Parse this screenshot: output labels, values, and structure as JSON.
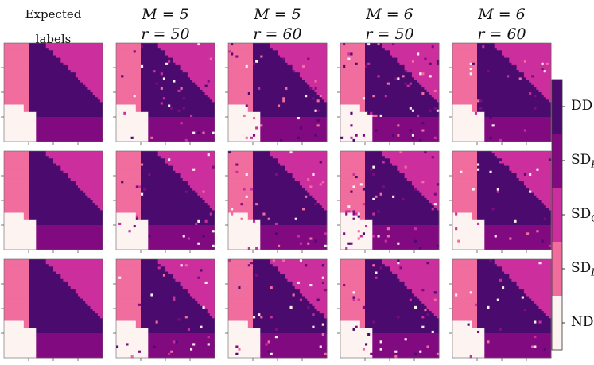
{
  "chart_data": {
    "type": "heatmap",
    "title": "",
    "columns": [
      {
        "line1": "Expected",
        "line2": "labels"
      },
      {
        "line1": "M = 5",
        "line2": "r = 50"
      },
      {
        "line1": "M = 5",
        "line2": "r = 60"
      },
      {
        "line1": "M = 6",
        "line2": "r = 50"
      },
      {
        "line1": "M = 6",
        "line2": "r = 60"
      }
    ],
    "rows": 3,
    "grid_size": 40,
    "colorbar": {
      "labels": [
        {
          "text": "DD",
          "sub": ""
        },
        {
          "text": "SD",
          "sub": "R"
        },
        {
          "text": "SD",
          "sub": "C"
        },
        {
          "text": "SD",
          "sub": "L"
        },
        {
          "text": "ND",
          "sub": ""
        }
      ],
      "colors": [
        "#4b0a6e",
        "#820a80",
        "#cc2e9d",
        "#f06d9e",
        "#fdf3f1"
      ]
    },
    "classes": {
      "ND": "#fdf3f1",
      "SD_L": "#f06d9e",
      "SD_C": "#cc2e9d",
      "SD_R": "#820a80",
      "DD": "#4b0a6e"
    },
    "region_boundaries": {
      "left_band_end": 0.21,
      "bottom_band_start": 0.6,
      "diagonal_start_x": 0.27,
      "diagonal_end_x": 1.0,
      "diagonal_top_width": 0.14,
      "diagonal_bottom_width": 0.47
    },
    "noise_rates": [
      0,
      0.03,
      0.035,
      0.04,
      0.02
    ]
  }
}
